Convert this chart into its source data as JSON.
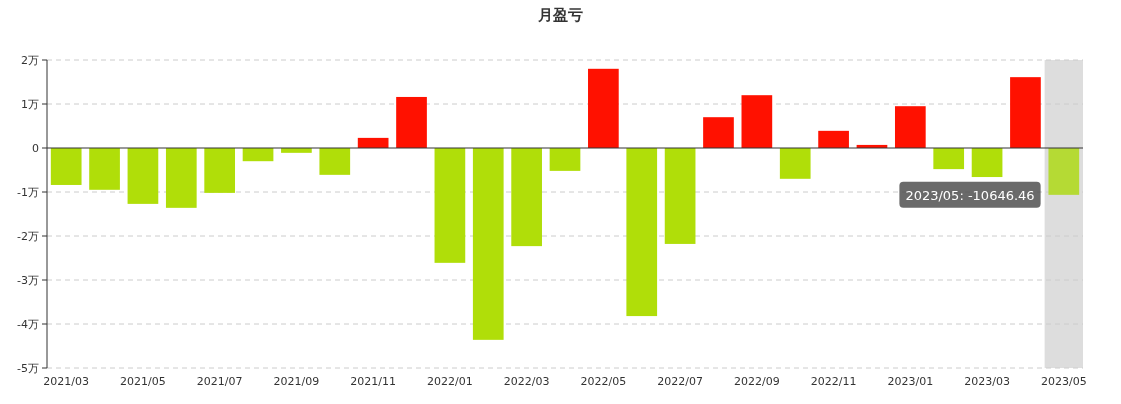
{
  "chart_data": {
    "type": "bar",
    "title": "月盈亏",
    "categories": [
      "2021/03",
      null,
      "2021/05",
      null,
      "2021/07",
      null,
      "2021/09",
      null,
      "2021/11",
      null,
      "2022/01",
      null,
      "2022/03",
      null,
      "2022/05",
      null,
      "2022/07",
      null,
      "2022/09",
      null,
      "2022/11",
      null,
      "2023/01",
      null,
      "2023/03",
      null,
      "2023/05"
    ],
    "values": [
      -0.84,
      -0.95,
      -1.27,
      -1.36,
      -1.02,
      -0.3,
      -0.11,
      -0.61,
      0.23,
      1.16,
      -2.61,
      -4.36,
      -2.23,
      -0.52,
      1.8,
      -3.82,
      -2.18,
      0.7,
      1.2,
      -0.7,
      0.39,
      0.07,
      0.95,
      -0.48,
      -0.66,
      1.61,
      -1.064646
    ],
    "colors": [
      "#b0de09",
      "#b0de09",
      "#b0de09",
      "#b0de09",
      "#b0de09",
      "#b0de09",
      "#b0de09",
      "#b0de09",
      "#ff1100",
      "#ff1100",
      "#b0de09",
      "#b0de09",
      "#b0de09",
      "#b0de09",
      "#ff1100",
      "#b0de09",
      "#b0de09",
      "#ff1100",
      "#ff1100",
      "#b0de09",
      "#ff1100",
      "#ff1100",
      "#ff1100",
      "#b0de09",
      "#b0de09",
      "#ff1100",
      "#b5da34"
    ],
    "ylim": [
      -5,
      2
    ],
    "yticks": [
      {
        "value": 2,
        "label": "2万"
      },
      {
        "value": 1,
        "label": "1万"
      },
      0,
      {
        "value": -1,
        "label": "-1万"
      },
      {
        "value": -2,
        "label": "-2万"
      },
      {
        "value": -3,
        "label": "-3万"
      },
      {
        "value": -4,
        "label": "-4万"
      },
      {
        "value": -5,
        "label": "-5万"
      }
    ],
    "grid": "y",
    "bands": [
      {
        "axis": "x",
        "from": "2023/05",
        "to": "2023/05",
        "color": "#dddddd"
      }
    ],
    "annotations": [
      {
        "text": "2023/05: -10646.46",
        "x": "2023/05",
        "y": -1.064646
      }
    ]
  }
}
